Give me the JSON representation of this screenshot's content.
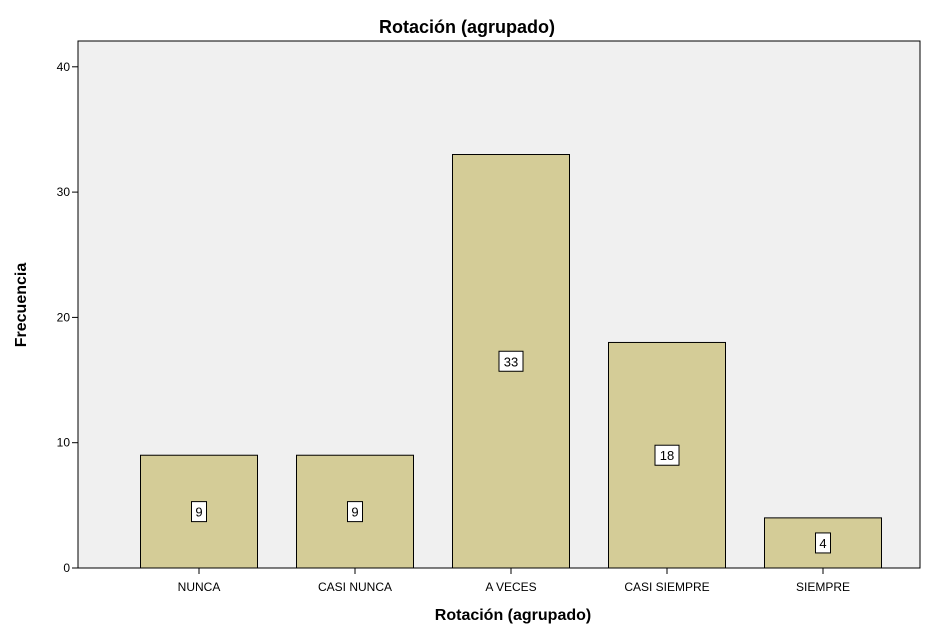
{
  "chart_data": {
    "type": "bar",
    "title": "Rotación (agrupado)",
    "xlabel": "Rotación (agrupado)",
    "ylabel": "Frecuencia",
    "categories": [
      "NUNCA",
      "CASI NUNCA",
      "A VECES",
      "CASI SIEMPRE",
      "SIEMPRE"
    ],
    "values": [
      9,
      9,
      33,
      18,
      4
    ],
    "data_labels": [
      "9",
      "9",
      "33",
      "18",
      "4"
    ],
    "ylim": [
      0,
      42
    ],
    "yticks": [
      0,
      10,
      20,
      30,
      40
    ],
    "ytick_labels": [
      "0",
      "10",
      "20",
      "30",
      "40"
    ],
    "grid": false,
    "colors": {
      "bar_fill": "#d4cc97",
      "bar_stroke": "#000000",
      "plot_background": "#f0f0f0",
      "label_box": "#ffffff"
    }
  }
}
